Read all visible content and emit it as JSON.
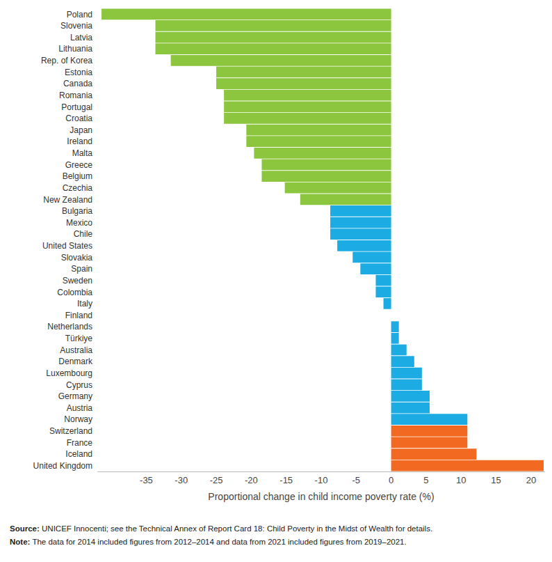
{
  "chart_data": {
    "type": "bar",
    "orientation": "horizontal",
    "x_label": "Proportional change in child income poverty rate (%)",
    "categories": [
      "Poland",
      "Slovenia",
      "Latvia",
      "Lithuania",
      "Rep. of Korea",
      "Estonia",
      "Canada",
      "Romania",
      "Portugal",
      "Croatia",
      "Japan",
      "Ireland",
      "Malta",
      "Greece",
      "Belgium",
      "Czechia",
      "New Zealand",
      "Bulgaria",
      "Mexico",
      "Chile",
      "United States",
      "Slovakia",
      "Spain",
      "Sweden",
      "Colombia",
      "Italy",
      "Finland",
      "Netherlands",
      "Türkiye",
      "Australia",
      "Denmark",
      "Luxembourg",
      "Cyprus",
      "Germany",
      "Austria",
      "Norway",
      "Switzerland",
      "France",
      "Iceland",
      "United Kingdom"
    ],
    "values": [
      -41.4,
      -33.7,
      -33.7,
      -33.7,
      -31.5,
      -25,
      -25,
      -23.9,
      -23.9,
      -23.9,
      -20.7,
      -20.7,
      -19.6,
      -18.5,
      -18.5,
      -15.2,
      -13,
      -8.7,
      -8.7,
      -8.7,
      -7.7,
      -5.5,
      -4.4,
      -2.2,
      -2.2,
      -1.1,
      0,
      1.1,
      1.1,
      2.2,
      3.3,
      4.4,
      4.4,
      5.5,
      5.5,
      10.9,
      10.9,
      10.9,
      12.2,
      21.8
    ],
    "colors": [
      "#8cc63f",
      "#8cc63f",
      "#8cc63f",
      "#8cc63f",
      "#8cc63f",
      "#8cc63f",
      "#8cc63f",
      "#8cc63f",
      "#8cc63f",
      "#8cc63f",
      "#8cc63f",
      "#8cc63f",
      "#8cc63f",
      "#8cc63f",
      "#8cc63f",
      "#8cc63f",
      "#8cc63f",
      "#1cabe2",
      "#1cabe2",
      "#1cabe2",
      "#1cabe2",
      "#1cabe2",
      "#1cabe2",
      "#1cabe2",
      "#1cabe2",
      "#1cabe2",
      "#1cabe2",
      "#1cabe2",
      "#1cabe2",
      "#1cabe2",
      "#1cabe2",
      "#1cabe2",
      "#1cabe2",
      "#1cabe2",
      "#1cabe2",
      "#1cabe2",
      "#f26a21",
      "#f26a21",
      "#f26a21",
      "#f26a21"
    ],
    "xlim": [
      -42,
      22
    ],
    "xticks": [
      -35,
      -30,
      -25,
      -20,
      -15,
      -10,
      -5,
      0,
      5,
      10,
      15,
      20
    ],
    "grid": false,
    "annotations": [
      "Source: UNICEF Innocenti; see the Technical Annex of Report Card 18: Child Poverty in the Midst of Wealth for details.",
      "Note: The data for 2014 included figures from 2012–2014 and data from 2021 included figures from 2019–2021."
    ]
  }
}
